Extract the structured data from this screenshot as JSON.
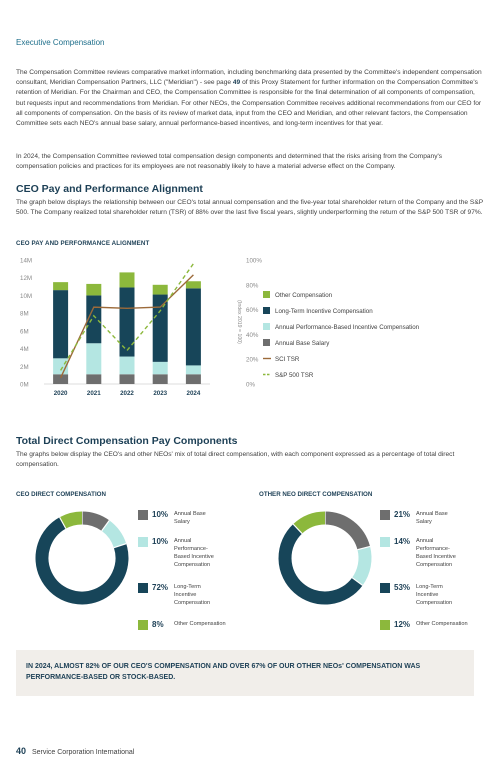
{
  "header": {
    "section": "Executive Compensation"
  },
  "paragraphs": {
    "p1_a": "The Compensation Committee reviews comparative market information, including benchmarking data presented by the Committee's independent compensation consultant, Meridian Compensation Partners, LLC (\"Meridian\") - see page ",
    "p1_page": "49",
    "p1_b": " of this Proxy Statement for further information on the Compensation Committee's retention of Meridian. For the Chairman and CEO, the Compensation Committee is responsible for the final determination of all components of compensation, but requests input and recommendations from Meridian. For other NEOs, the Compensation Committee receives additional recommendations from our CEO for all components of compensation. On the basis of its review of market data, input from the CEO and Meridian, and other relevant factors, the Compensation Committee sets each NEO's annual base salary, annual performance-based incentives, and long-term incentives for that year.",
    "p2": "In 2024, the Compensation Committee reviewed total compensation design components and determined that the risks arising from the Company's compensation policies and practices for its employees are not reasonably likely to have a material adverse effect on the Company."
  },
  "alignment": {
    "heading": "CEO Pay and Performance Alignment",
    "body": "The graph below displays the relationship between our CEO's total annual compensation and the five-year total shareholder return of the Company and the S&P 500. The Company realized total shareholder return (TSR) of 88% over the last five fiscal years, slightly underperforming the return of the S&P 500 TSR of 97%.",
    "chart_title": "CEO PAY AND PERFORMANCE ALIGNMENT"
  },
  "chart_data": [
    {
      "type": "bar",
      "stacked": true,
      "title": "CEO PAY AND PERFORMANCE ALIGNMENT",
      "categories": [
        "2020",
        "2021",
        "2022",
        "2023",
        "2024"
      ],
      "yticks_left": [
        "14M",
        "12M",
        "10M",
        "8M",
        "6M",
        "4M",
        "2M",
        "0M"
      ],
      "yticks_right": [
        "100%",
        "80%",
        "60%",
        "40%",
        "20%",
        "0%"
      ],
      "ylim_left": [
        0,
        14
      ],
      "ylim_right": [
        0,
        100
      ],
      "ylabel_right": "(Index 2019 = 100)",
      "grid": false,
      "legend_position": "right",
      "series": [
        {
          "name": "Annual Base Salary",
          "color": "#6e6e6e",
          "values": [
            1.1,
            1.1,
            1.1,
            1.1,
            1.1
          ]
        },
        {
          "name": "Annual Performance-Based Incentive Compensation",
          "color": "#b4e6e2",
          "values": [
            1.8,
            3.5,
            2.0,
            1.4,
            1.0
          ]
        },
        {
          "name": "Long-Term Incentive Compensation",
          "color": "#174559",
          "values": [
            7.7,
            5.4,
            7.8,
            7.6,
            8.7
          ]
        },
        {
          "name": "Other Compensation",
          "color": "#8cb83c",
          "values": [
            0.9,
            1.3,
            1.7,
            1.1,
            0.8
          ]
        }
      ],
      "lines": [
        {
          "name": "SCI TSR",
          "color": "#9c6a3a",
          "style": "solid",
          "values": [
            5,
            62,
            61,
            62,
            88
          ]
        },
        {
          "name": "S&P 500 TSR",
          "color": "#8cb83c",
          "style": "dashed",
          "values": [
            11,
            55,
            27,
            59,
            97
          ]
        }
      ],
      "legend_order": [
        "Other Compensation",
        "Long-Term Incentive Compensation",
        "Annual Performance-Based Incentive Compensation",
        "Annual Base Salary",
        "SCI TSR",
        "S&P 500 TSR"
      ]
    },
    {
      "type": "pie",
      "donut": true,
      "title": "CEO DIRECT COMPENSATION",
      "slices": [
        {
          "label": "Annual Base Salary",
          "value": 10,
          "pct": "10%",
          "color": "#6e6e6e"
        },
        {
          "label": "Annual Performance-Based Incentive Compensation",
          "value": 10,
          "pct": "10%",
          "color": "#b4e6e2"
        },
        {
          "label": "Long-Term Incentive Compensation",
          "value": 72,
          "pct": "72%",
          "color": "#174559"
        },
        {
          "label": "Other Compensation",
          "value": 8,
          "pct": "8%",
          "color": "#8cb83c"
        }
      ]
    },
    {
      "type": "pie",
      "donut": true,
      "title": "OTHER NEO DIRECT COMPENSATION",
      "slices": [
        {
          "label": "Annual Base Salary",
          "value": 21,
          "pct": "21%",
          "color": "#6e6e6e"
        },
        {
          "label": "Annual Performance-Based Incentive Compensation",
          "value": 14,
          "pct": "14%",
          "color": "#b4e6e2"
        },
        {
          "label": "Long-Term Incentive Compensation",
          "value": 53,
          "pct": "53%",
          "color": "#174559"
        },
        {
          "label": "Other Compensation",
          "value": 12,
          "pct": "12%",
          "color": "#8cb83c"
        }
      ]
    }
  ],
  "tdc": {
    "heading": "Total Direct Compensation Pay Components",
    "body": "The graphs below display the CEO's and other NEOs' mix of total direct compensation, with each component expressed as a percentage of total direct compensation.",
    "ceo_title": "CEO DIRECT COMPENSATION",
    "neo_title": "OTHER NEO DIRECT COMPENSATION",
    "labels": {
      "base": "Annual Base Salary",
      "api": "Annual Performance-Based Incentive Compensation",
      "lti": "Long-Term Incentive Compensation",
      "other": "Other Compensation"
    },
    "ceo_pcts": {
      "base": "10%",
      "api": "10%",
      "lti": "72%",
      "other": "8%"
    },
    "neo_pcts": {
      "base": "21%",
      "api": "14%",
      "lti": "53%",
      "other": "12%"
    }
  },
  "callout": "IN 2024, ALMOST 82% OF OUR CEO'S COMPENSATION AND OVER 67% OF OUR OTHER NEOs' COMPENSATION WAS PERFORMANCE-BASED OR STOCK-BASED.",
  "footer": {
    "page": "40",
    "company": "Service Corporation International"
  }
}
